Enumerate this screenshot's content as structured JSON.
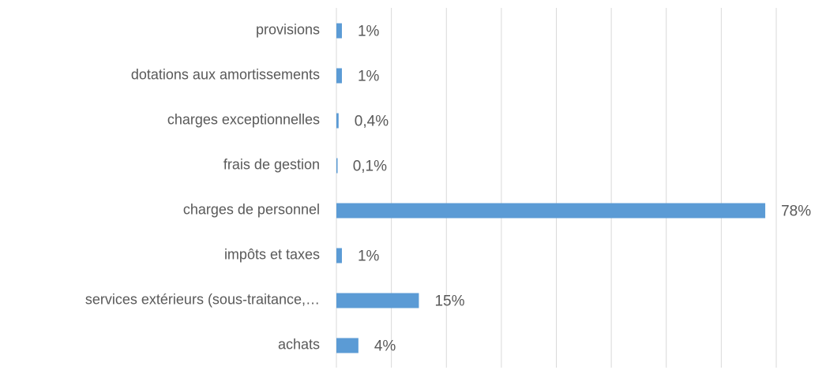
{
  "chart_data": {
    "type": "barh",
    "categories": [
      "provisions",
      "dotations aux amortissements",
      "charges exceptionnelles",
      "frais de gestion",
      "charges de personnel",
      "impôts et taxes",
      "services extérieurs (sous-traitance,…",
      "achats"
    ],
    "values": [
      1,
      1,
      0.4,
      0.1,
      78,
      1,
      15,
      4
    ],
    "value_labels": [
      "1%",
      "1%",
      "0,4%",
      "0,1%",
      "78%",
      "1%",
      "15%",
      "4%"
    ],
    "color": "#5b9bd5",
    "xlim": [
      0,
      80
    ],
    "xticks": [
      0,
      10,
      20,
      30,
      40,
      50,
      60,
      70,
      80
    ],
    "grid": true
  }
}
